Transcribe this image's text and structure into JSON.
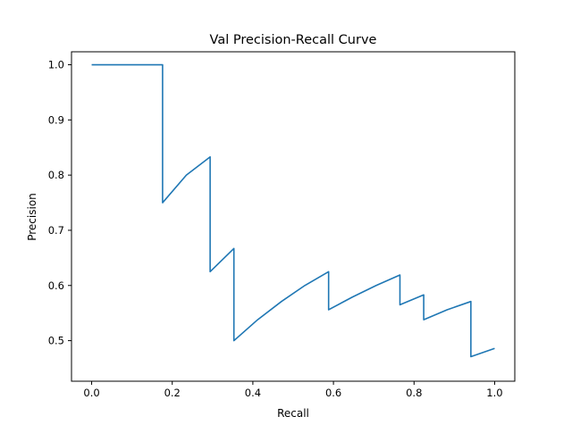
{
  "chart_data": {
    "type": "line",
    "title": "Val Precision-Recall Curve",
    "xlabel": "Recall",
    "ylabel": "Precision",
    "xlim": [
      -0.05,
      1.05
    ],
    "ylim": [
      0.4265,
      1.0235
    ],
    "xticks": [
      0.0,
      0.2,
      0.4,
      0.6,
      0.8,
      1.0
    ],
    "xtick_labels": [
      "0.0",
      "0.2",
      "0.4",
      "0.6",
      "0.8",
      "1.0"
    ],
    "yticks": [
      0.5,
      0.6,
      0.7,
      0.8,
      0.9,
      1.0
    ],
    "ytick_labels": [
      "0.5",
      "0.6",
      "0.7",
      "0.8",
      "0.9",
      "1.0"
    ],
    "grid": false,
    "series": [
      {
        "color": "#1f77b4",
        "x": [
          0.0,
          0.176,
          0.176,
          0.235,
          0.294,
          0.294,
          0.353,
          0.353,
          0.412,
          0.471,
          0.529,
          0.588,
          0.588,
          0.647,
          0.706,
          0.765,
          0.765,
          0.824,
          0.824,
          0.882,
          0.941,
          0.941,
          1.0
        ],
        "y": [
          1.0,
          1.0,
          0.75,
          0.8,
          0.833,
          0.625,
          0.667,
          0.5,
          0.538,
          0.571,
          0.6,
          0.625,
          0.556,
          0.579,
          0.6,
          0.619,
          0.565,
          0.583,
          0.538,
          0.556,
          0.571,
          0.471,
          0.486
        ]
      }
    ]
  }
}
